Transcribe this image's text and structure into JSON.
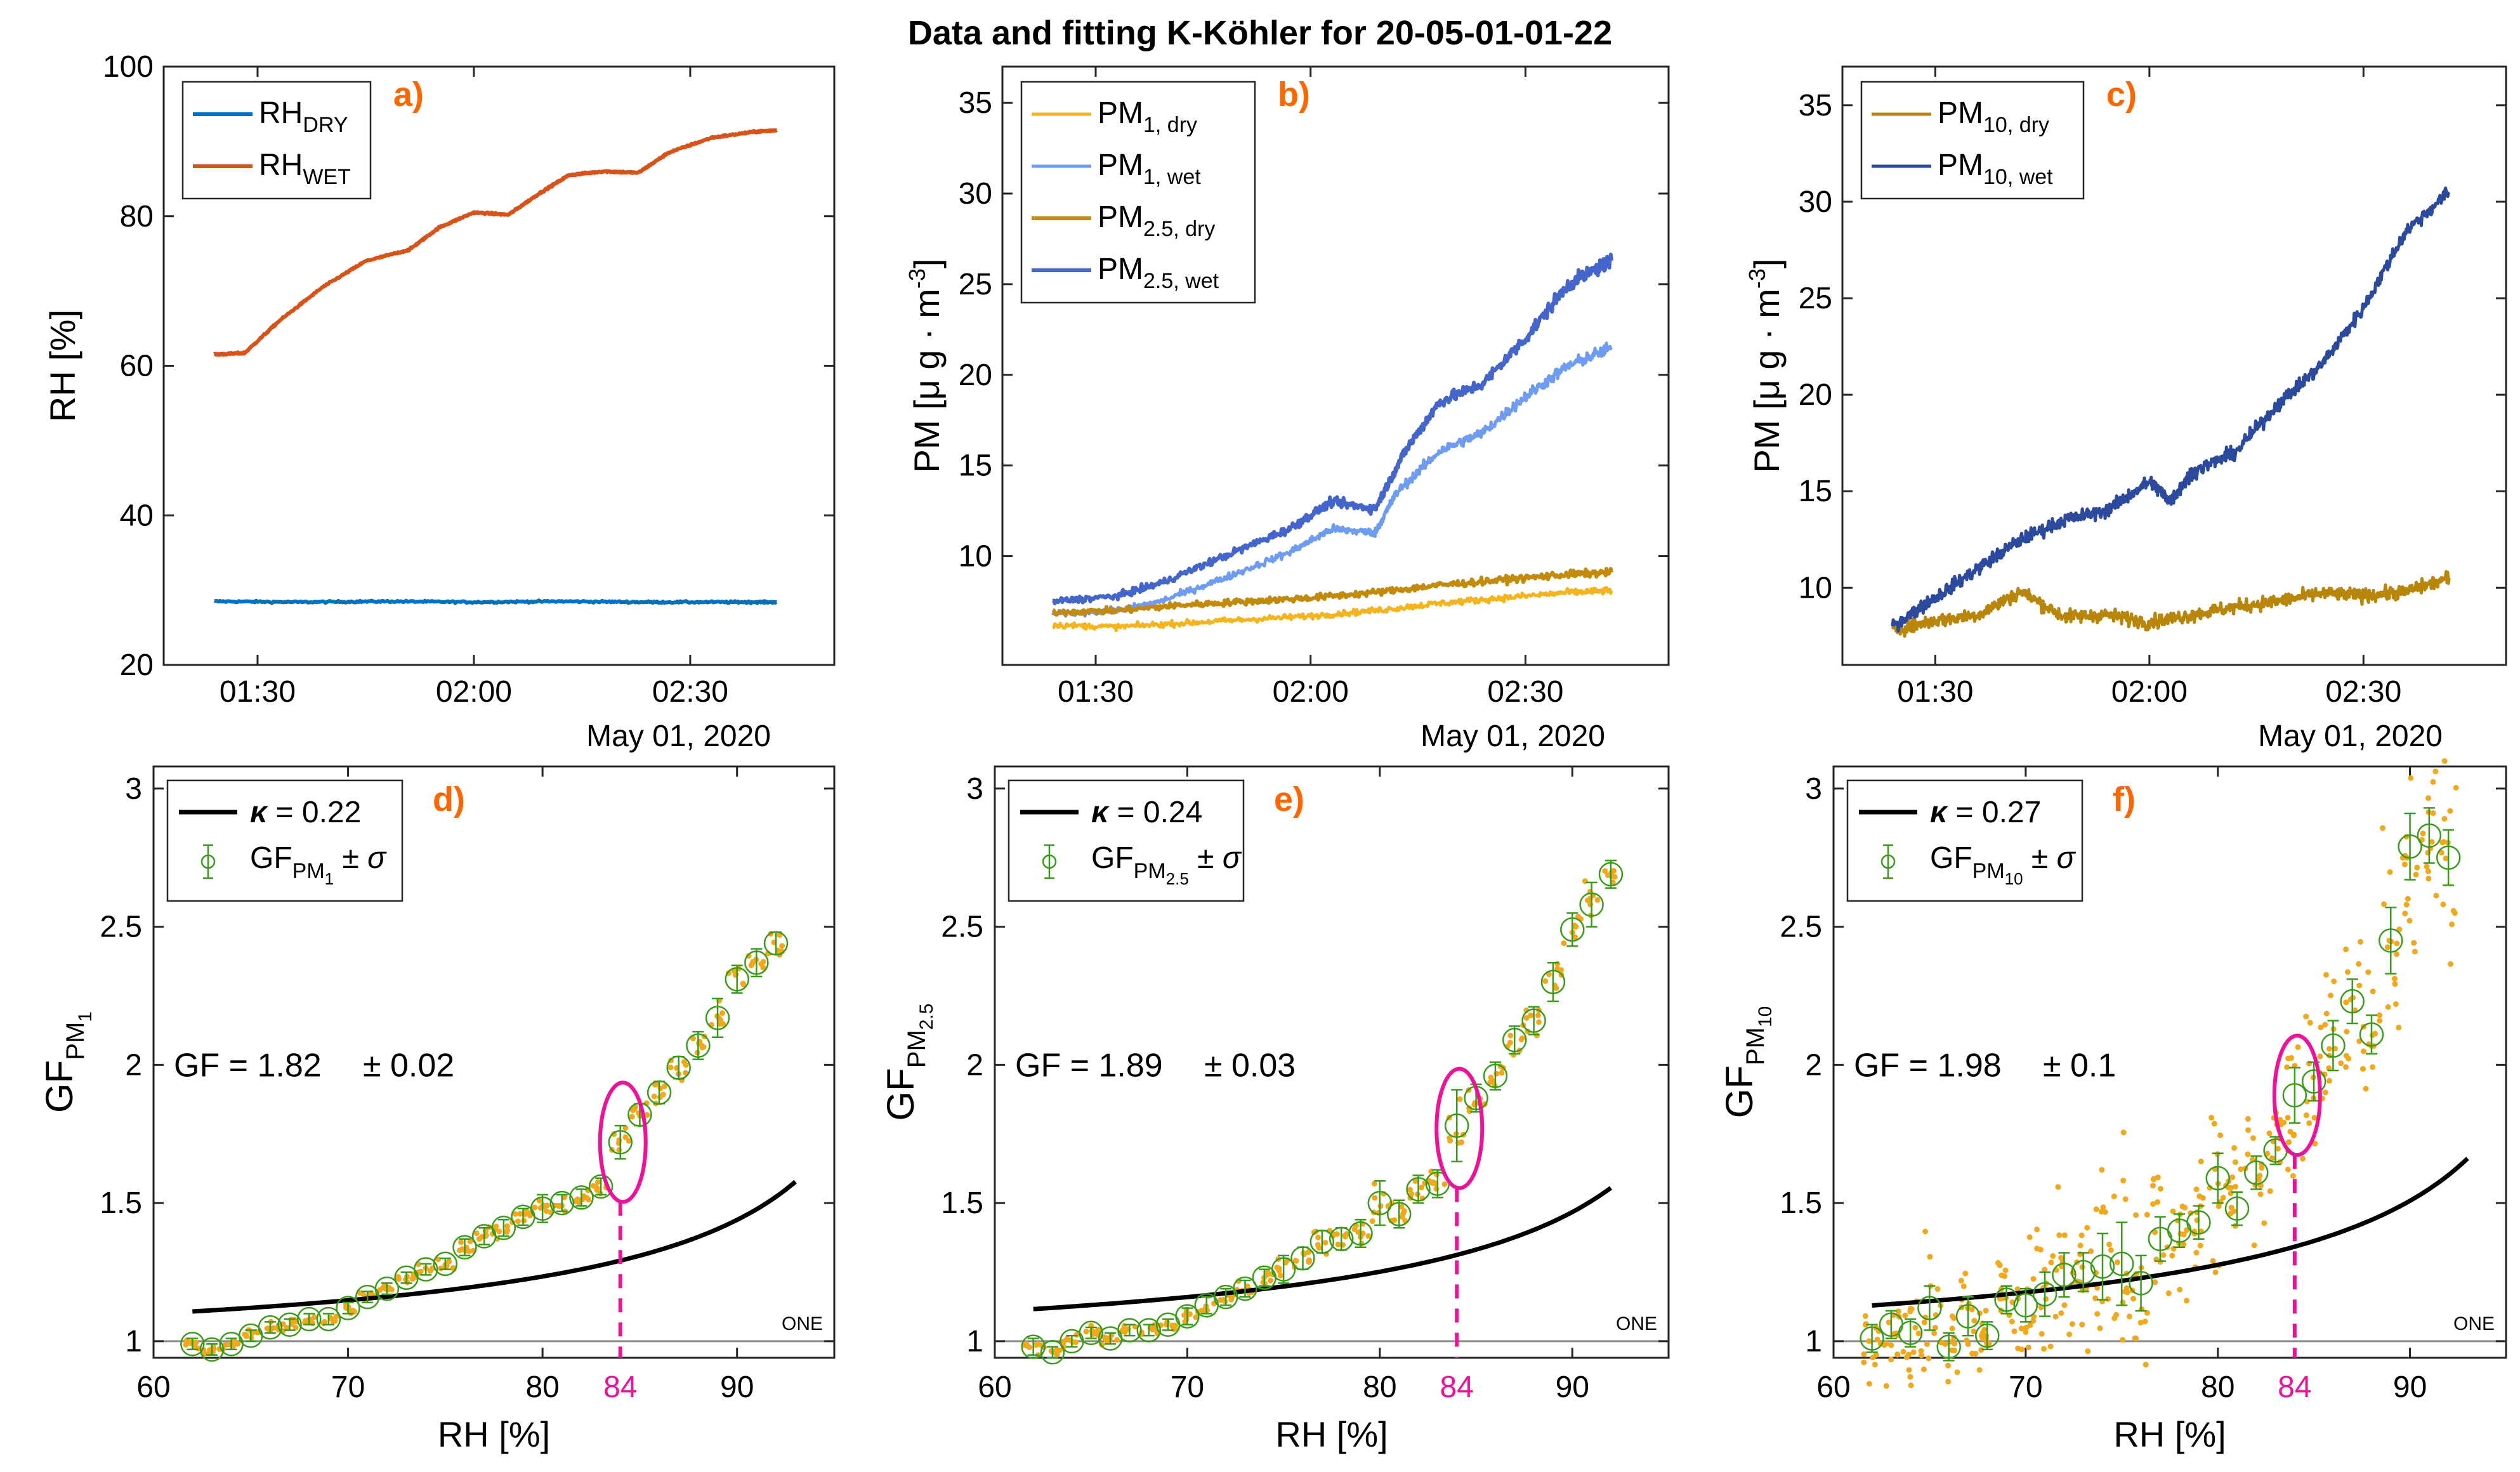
{
  "figure_title": "Data and fitting K-Köhler for 20-05-01-01-22",
  "colors": {
    "rh_dry": "#0072BD",
    "rh_wet": "#D95319",
    "pm1_dry": "#F5B31C",
    "pm1_wet": "#6E9CF2",
    "pm25_dry": "#C48A0C",
    "pm25_wet": "#4466CC",
    "pm10_dry": "#B8860B",
    "pm10_wet": "#2B4A9E",
    "fit": "#000000",
    "gf_marker": "#3A9A1A",
    "scatter": "#F2A81C",
    "highlight": "#EE1199",
    "panel_tag": "#FF6600"
  },
  "chart_data": [
    {
      "id": "a",
      "type": "line",
      "tag": "a)",
      "ylabel": "RH [%]",
      "xlabel_date": "May 01, 2020",
      "xlim": [
        1.283,
        2.833
      ],
      "ylim": [
        20,
        100
      ],
      "xticks": [
        1.5,
        2.0,
        2.5
      ],
      "xtick_labels": [
        "01:30",
        "02:00",
        "02:30"
      ],
      "yticks": [
        20,
        40,
        60,
        80,
        100
      ],
      "ytick_labels": [
        "20",
        "40",
        "60",
        "80",
        "100"
      ],
      "series": [
        {
          "name": "RH_DRY",
          "legend_main": "RH",
          "legend_sub": "DRY",
          "color_key": "rh_dry",
          "width": 6,
          "x": [
            1.4,
            1.6,
            1.8,
            2.0,
            2.2,
            2.4,
            2.6,
            2.7
          ],
          "y": [
            28.5,
            28.4,
            28.5,
            28.4,
            28.5,
            28.4,
            28.4,
            28.4
          ]
        },
        {
          "name": "RH_WET",
          "legend_main": "RH",
          "legend_sub": "WET",
          "color_key": "rh_wet",
          "width": 6,
          "x": [
            1.4,
            1.47,
            1.55,
            1.65,
            1.75,
            1.85,
            1.92,
            2.0,
            2.08,
            2.15,
            2.22,
            2.3,
            2.38,
            2.45,
            2.55,
            2.65,
            2.7
          ],
          "y": [
            61.5,
            61.7,
            66,
            70.5,
            74,
            75.5,
            78.5,
            80.5,
            80.2,
            83,
            85.5,
            86,
            85.8,
            88.5,
            90.5,
            91.3,
            91.5
          ]
        }
      ]
    },
    {
      "id": "b",
      "type": "line",
      "tag": "b)",
      "ylabel": "PM [μ g · m⁻³]",
      "xlabel_date": "May 01, 2020",
      "xlim": [
        1.283,
        2.833
      ],
      "ylim": [
        4,
        37
      ],
      "xticks": [
        1.5,
        2.0,
        2.5
      ],
      "xtick_labels": [
        "01:30",
        "02:00",
        "02:30"
      ],
      "yticks": [
        10,
        15,
        20,
        25,
        30,
        35
      ],
      "ytick_labels": [
        "10",
        "15",
        "20",
        "25",
        "30",
        "35"
      ],
      "series": [
        {
          "name": "PM1, dry",
          "legend_main": "PM",
          "legend_sub": "1, dry",
          "color_key": "pm1_dry",
          "width": 5,
          "x": [
            1.4,
            1.55,
            1.7,
            1.85,
            2.0,
            2.15,
            2.3,
            2.45,
            2.6,
            2.7
          ],
          "y": [
            6.2,
            6.1,
            6.3,
            6.5,
            6.7,
            7.0,
            7.4,
            7.7,
            8.0,
            8.1
          ]
        },
        {
          "name": "PM1, wet",
          "legend_main": "PM",
          "legend_sub": "1, wet",
          "color_key": "pm1_wet",
          "width": 5,
          "x": [
            1.4,
            1.55,
            1.65,
            1.8,
            1.95,
            2.05,
            2.15,
            2.2,
            2.3,
            2.4,
            2.5,
            2.6,
            2.7
          ],
          "y": [
            6.8,
            7.0,
            7.5,
            8.8,
            10.2,
            11.5,
            11.3,
            13.5,
            15.8,
            16.8,
            18.8,
            20.5,
            21.5
          ]
        },
        {
          "name": "PM2.5, dry",
          "legend_main": "PM",
          "legend_sub": "2.5, dry",
          "color_key": "pm25_dry",
          "width": 6,
          "x": [
            1.4,
            1.55,
            1.7,
            1.85,
            2.0,
            2.15,
            2.3,
            2.45,
            2.6,
            2.7
          ],
          "y": [
            6.9,
            7.0,
            7.3,
            7.5,
            7.7,
            8.0,
            8.4,
            8.7,
            9.0,
            9.1
          ]
        },
        {
          "name": "PM2.5, wet",
          "legend_main": "PM",
          "legend_sub": "2.5, wet",
          "color_key": "pm25_wet",
          "width": 6,
          "x": [
            1.4,
            1.55,
            1.65,
            1.8,
            1.95,
            2.05,
            2.15,
            2.22,
            2.3,
            2.4,
            2.5,
            2.6,
            2.7
          ],
          "y": [
            7.5,
            7.8,
            8.5,
            10.0,
            11.5,
            13.0,
            12.6,
            15.8,
            18.5,
            19.5,
            22.0,
            25.0,
            26.3
          ]
        }
      ]
    },
    {
      "id": "c",
      "type": "line",
      "tag": "c)",
      "ylabel": "PM [μ g · m⁻³]",
      "xlabel_date": "May 01, 2020",
      "xlim": [
        1.283,
        2.833
      ],
      "ylim": [
        6,
        37
      ],
      "xticks": [
        1.5,
        2.0,
        2.5
      ],
      "xtick_labels": [
        "01:30",
        "02:00",
        "02:30"
      ],
      "yticks": [
        10,
        15,
        20,
        25,
        30,
        35
      ],
      "ytick_labels": [
        "10",
        "15",
        "20",
        "25",
        "30",
        "35"
      ],
      "series": [
        {
          "name": "PM10, dry",
          "legend_main": "PM",
          "legend_sub": "10, dry",
          "color_key": "pm10_dry",
          "width": 5,
          "x": [
            1.4,
            1.5,
            1.6,
            1.7,
            1.8,
            1.9,
            2.0,
            2.1,
            2.2,
            2.3,
            2.4,
            2.5,
            2.6,
            2.7
          ],
          "y": [
            7.8,
            8.3,
            8.6,
            9.8,
            8.5,
            8.6,
            8.2,
            8.6,
            9.0,
            9.3,
            9.7,
            9.6,
            9.8,
            10.5
          ]
        },
        {
          "name": "PM10, wet",
          "legend_main": "PM",
          "legend_sub": "10, wet",
          "color_key": "pm10_wet",
          "width": 5,
          "x": [
            1.4,
            1.5,
            1.6,
            1.7,
            1.8,
            1.9,
            2.0,
            2.05,
            2.1,
            2.2,
            2.3,
            2.4,
            2.5,
            2.6,
            2.7
          ],
          "y": [
            8.0,
            9.5,
            11.0,
            12.5,
            13.5,
            14.0,
            15.5,
            14.5,
            16.0,
            17.0,
            19.5,
            21.5,
            24.5,
            28.5,
            30.5
          ]
        }
      ]
    },
    {
      "id": "d",
      "type": "scatter",
      "tag": "d)",
      "ylabel_main": "GF",
      "ylabel_sub": "PM",
      "ylabel_subsub": "1",
      "xlabel": "RH [%]",
      "xlim": [
        60,
        95
      ],
      "ylim": [
        0.94,
        3.08
      ],
      "xticks": [
        60,
        70,
        80,
        84,
        90
      ],
      "xtick_labels": [
        "60",
        "70",
        "80",
        "84",
        "90"
      ],
      "yticks": [
        1,
        1.5,
        2,
        2.5,
        3
      ],
      "ytick_labels": [
        "1",
        "1.5",
        "2",
        "2.5",
        "3"
      ],
      "kappa_label": "κ = 0.22",
      "kappa": 0.22,
      "legend_gf_main": "GF",
      "legend_gf_sub": "PM",
      "legend_gf_subsub": "1",
      "legend_gf_suffix": "± σ",
      "gf_text": "GF = 1.82",
      "gf_err_text": "± 0.02",
      "one_label": "ONE",
      "highlight_rh": 84,
      "highlight_gf": 1.72,
      "fit_rh": [
        62,
        93
      ],
      "gf_points": {
        "rh": [
          62,
          63,
          64,
          65,
          66,
          67,
          68,
          69,
          70,
          71,
          72,
          73,
          74,
          75,
          76,
          77,
          78,
          79,
          80,
          81,
          82,
          83,
          84,
          85,
          86,
          87,
          88,
          89,
          90,
          91,
          92
        ],
        "gf": [
          0.99,
          0.97,
          0.99,
          1.02,
          1.05,
          1.06,
          1.08,
          1.08,
          1.12,
          1.16,
          1.19,
          1.23,
          1.26,
          1.28,
          1.34,
          1.38,
          1.41,
          1.45,
          1.48,
          1.5,
          1.52,
          1.56,
          1.72,
          1.82,
          1.9,
          1.99,
          2.07,
          2.17,
          2.31,
          2.37,
          2.44
        ],
        "err": [
          0.02,
          0.02,
          0.02,
          0.02,
          0.02,
          0.02,
          0.02,
          0.02,
          0.02,
          0.02,
          0.02,
          0.02,
          0.02,
          0.02,
          0.03,
          0.03,
          0.03,
          0.03,
          0.05,
          0.03,
          0.03,
          0.03,
          0.06,
          0.04,
          0.04,
          0.04,
          0.05,
          0.07,
          0.05,
          0.05,
          0.04
        ]
      }
    },
    {
      "id": "e",
      "type": "scatter",
      "tag": "e)",
      "ylabel_main": "GF",
      "ylabel_sub": "PM",
      "ylabel_subsub": "2.5",
      "xlabel": "RH [%]",
      "xlim": [
        60,
        95
      ],
      "ylim": [
        0.94,
        3.08
      ],
      "xticks": [
        60,
        70,
        80,
        84,
        90
      ],
      "xtick_labels": [
        "60",
        "70",
        "80",
        "84",
        "90"
      ],
      "yticks": [
        1,
        1.5,
        2,
        2.5,
        3
      ],
      "ytick_labels": [
        "1",
        "1.5",
        "2",
        "2.5",
        "3"
      ],
      "kappa_label": "κ = 0.24",
      "kappa": 0.24,
      "legend_gf_main": "GF",
      "legend_gf_sub": "PM",
      "legend_gf_subsub": "2.5",
      "legend_gf_suffix": "± σ",
      "gf_text": "GF = 1.89",
      "gf_err_text": "± 0.03",
      "one_label": "ONE",
      "highlight_rh": 84,
      "highlight_gf": 1.77,
      "fit_rh": [
        62,
        92
      ],
      "gf_points": {
        "rh": [
          62,
          63,
          64,
          65,
          66,
          67,
          68,
          69,
          70,
          71,
          72,
          73,
          74,
          75,
          76,
          77,
          78,
          79,
          80,
          81,
          82,
          83,
          84,
          85,
          86,
          87,
          88,
          89,
          90,
          91,
          92
        ],
        "gf": [
          0.98,
          0.96,
          1.0,
          1.03,
          1.01,
          1.04,
          1.04,
          1.06,
          1.09,
          1.13,
          1.16,
          1.19,
          1.23,
          1.26,
          1.3,
          1.36,
          1.37,
          1.39,
          1.5,
          1.46,
          1.55,
          1.57,
          1.78,
          1.88,
          1.96,
          2.09,
          2.16,
          2.3,
          2.49,
          2.58,
          2.69
        ],
        "err": [
          0.03,
          0.02,
          0.02,
          0.02,
          0.02,
          0.02,
          0.02,
          0.02,
          0.03,
          0.03,
          0.03,
          0.03,
          0.03,
          0.05,
          0.04,
          0.04,
          0.04,
          0.05,
          0.08,
          0.05,
          0.05,
          0.05,
          0.13,
          0.05,
          0.05,
          0.05,
          0.05,
          0.07,
          0.06,
          0.08,
          0.05
        ]
      }
    },
    {
      "id": "f",
      "type": "scatter",
      "tag": "f)",
      "ylabel_main": "GF",
      "ylabel_sub": "PM",
      "ylabel_subsub": "10",
      "xlabel": "RH [%]",
      "xlim": [
        60,
        95
      ],
      "ylim": [
        0.94,
        3.08
      ],
      "xticks": [
        60,
        70,
        80,
        84,
        90
      ],
      "xtick_labels": [
        "60",
        "70",
        "80",
        "84",
        "90"
      ],
      "yticks": [
        1,
        1.5,
        2,
        2.5,
        3
      ],
      "ytick_labels": [
        "1",
        "1.5",
        "2",
        "2.5",
        "3"
      ],
      "kappa_label": "κ = 0.27",
      "kappa": 0.27,
      "legend_gf_main": "GF",
      "legend_gf_sub": "PM",
      "legend_gf_subsub": "10",
      "legend_gf_suffix": "± σ",
      "gf_text": "GF = 1.98",
      "gf_err_text": "± 0.1",
      "one_label": "ONE",
      "highlight_rh": 84,
      "highlight_gf": 1.89,
      "fit_rh": [
        62,
        93
      ],
      "gf_points": {
        "rh": [
          62,
          63,
          64,
          65,
          66,
          67,
          68,
          69,
          70,
          71,
          72,
          73,
          74,
          75,
          76,
          77,
          78,
          79,
          80,
          81,
          82,
          83,
          84,
          85,
          86,
          87,
          88,
          89,
          90,
          91,
          92
        ],
        "gf": [
          1.01,
          1.06,
          1.03,
          1.12,
          0.98,
          1.09,
          1.02,
          1.15,
          1.13,
          1.17,
          1.24,
          1.25,
          1.27,
          1.28,
          1.21,
          1.37,
          1.4,
          1.43,
          1.59,
          1.48,
          1.61,
          1.69,
          1.89,
          1.94,
          2.07,
          2.23,
          2.11,
          2.45,
          2.79,
          2.83,
          2.75
        ],
        "err": [
          0.05,
          0.05,
          0.05,
          0.08,
          0.05,
          0.07,
          0.05,
          0.05,
          0.06,
          0.08,
          0.08,
          0.07,
          0.12,
          0.15,
          0.1,
          0.08,
          0.06,
          0.06,
          0.09,
          0.06,
          0.06,
          0.05,
          0.1,
          0.07,
          0.09,
          0.08,
          0.07,
          0.12,
          0.12,
          0.1,
          0.1
        ]
      }
    }
  ]
}
